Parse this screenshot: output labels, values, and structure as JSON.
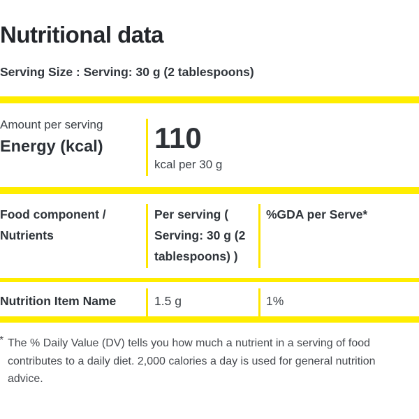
{
  "title": "Nutritional data",
  "serving_size": "Serving Size : Serving: 30 g (2 tablespoons)",
  "energy": {
    "amount_per_serving_label": "Amount per serving",
    "name": "Energy (kcal)",
    "value": "110",
    "per_text": "kcal per 30 g"
  },
  "nutrition_table": {
    "columns": [
      "Food component / Nutrients",
      "Per serving ( Serving: 30 g (2 tablespoons) )",
      "%GDA per Serve*"
    ],
    "rows": [
      {
        "name": "Nutrition Item Name",
        "per_serving": "1.5 g",
        "gda": "1%"
      }
    ]
  },
  "footnote": {
    "marker": "*",
    "lines": [
      "The % Daily Value (DV) tells you how much a nutrient in a serving of food",
      "contributes to a daily diet. 2,000 calories a day is used for general nutrition",
      "advice."
    ],
    "text": "The % Daily Value (DV) tells you how much a nutrient in a serving of food contributes to a daily diet. 2,000 calories a day is used for general nutrition advice."
  },
  "colors": {
    "accent_yellow": "#FFED00",
    "text_dark": "#23262b"
  }
}
